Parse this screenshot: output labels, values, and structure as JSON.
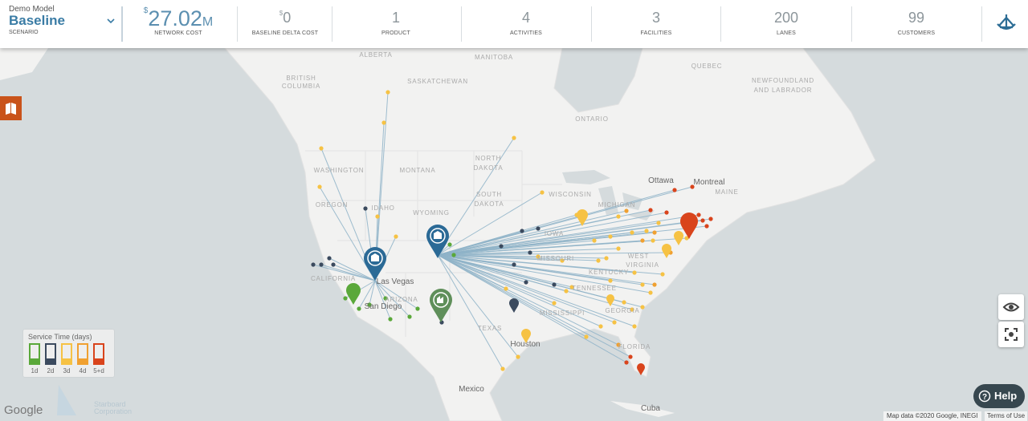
{
  "header": {
    "model": "Demo Model",
    "scenario": "Baseline",
    "scenario_label": "SCENARIO",
    "metrics": [
      {
        "prefix": "$",
        "value": "27.02",
        "suffix": "M",
        "label": "NETWORK COST"
      },
      {
        "prefix": "$",
        "value": "0",
        "label": "BASELINE DELTA COST"
      },
      {
        "value": "1",
        "label": "PRODUCT"
      },
      {
        "value": "4",
        "label": "ACTIVITIES"
      },
      {
        "value": "3",
        "label": "FACILITIES"
      },
      {
        "value": "200",
        "label": "LANES"
      },
      {
        "value": "99",
        "label": "CUSTOMERS"
      }
    ]
  },
  "map": {
    "labels": [
      "ALBERTA",
      "SASKATCHEWAN",
      "BRITISH",
      "COLUMBIA",
      "MANITOBA",
      "ONTARIO",
      "QUEBEC",
      "NEWFOUNDLAND",
      "AND LABRADOR",
      "WASHINGTON",
      "MONTANA",
      "NORTH",
      "DAKOTA",
      "SOUTH",
      "DAKOTA",
      "OREGON",
      "IDAHO",
      "WYOMING",
      "WISCONSIN",
      "MICHIGAN",
      "IOWA",
      "MISSOURI",
      "KENTUCKY",
      "WEST",
      "VIRGINIA",
      "TENNESSEE",
      "ARIZONA",
      "TEXAS",
      "FLORIDA",
      "CALIFORNIA",
      "Las Vegas",
      "San Diego",
      "Houston",
      "Mexico",
      "Cuba",
      "Ottawa",
      "Montreal",
      "MAINE",
      "GEORGIA",
      "MISSISSIPPI"
    ]
  },
  "legend": {
    "title": "Service Time (days)",
    "items": [
      "1d",
      "2d",
      "3d",
      "4d",
      "5+d"
    ]
  },
  "footer": {
    "brand": "Google",
    "company_1": "Starboard",
    "company_2": "Corporation",
    "attribution": "Map data ©2020 Google, INEGI",
    "terms": "Terms of Use"
  },
  "help": "Help"
}
